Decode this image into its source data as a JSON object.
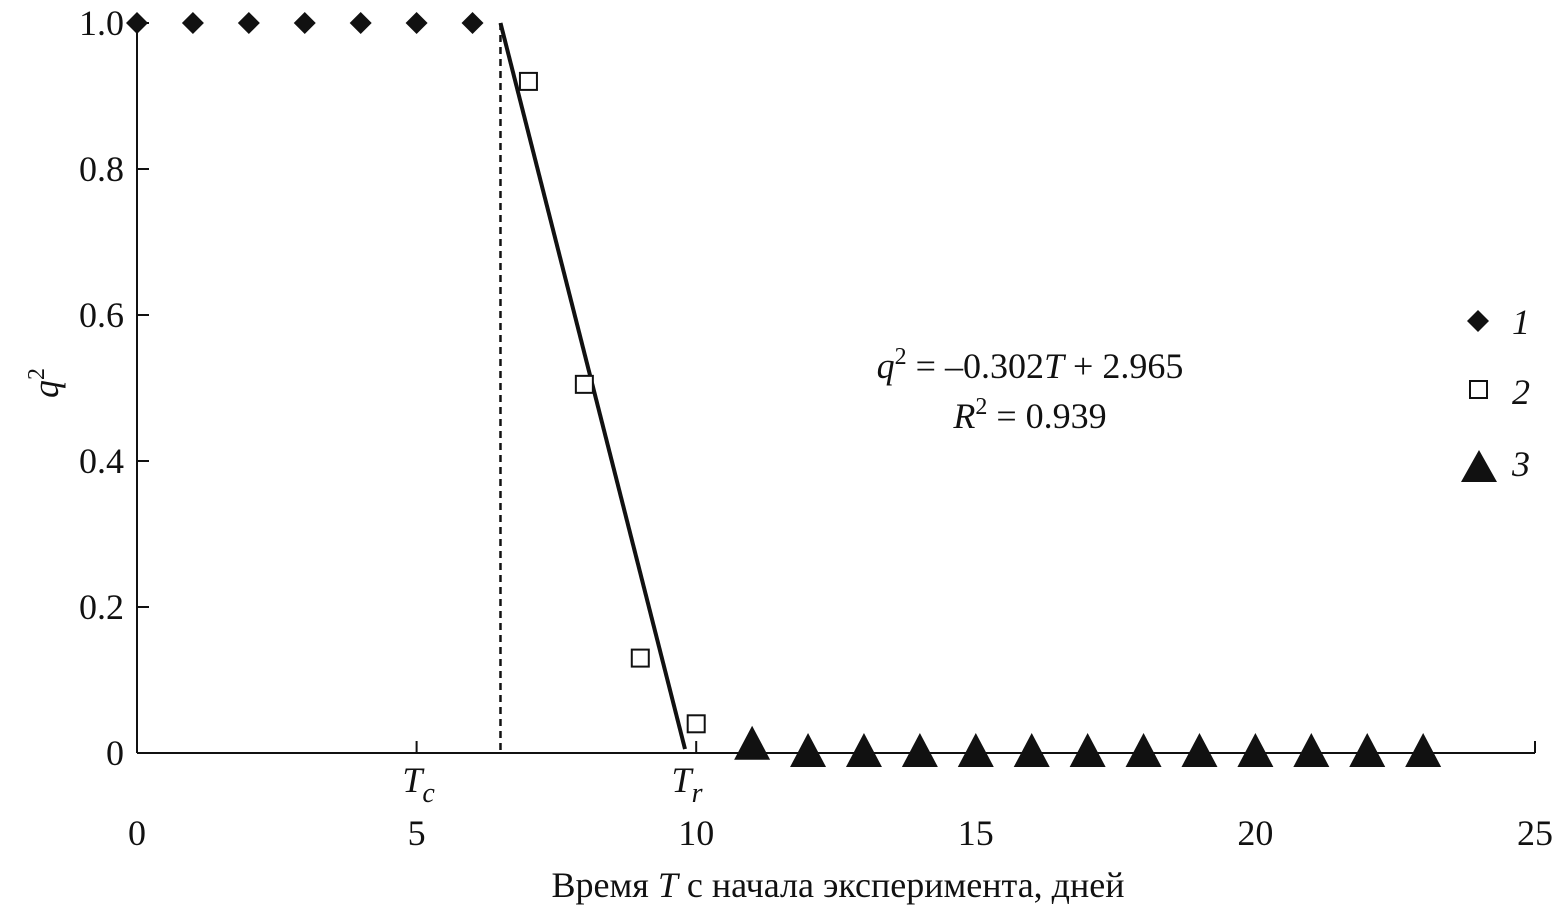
{
  "chart_data": {
    "type": "scatter",
    "ylabel": "q",
    "ylabel_superscript": "2",
    "xlabel_parts": [
      "Время ",
      "T",
      " с начала эксперимента, дней"
    ],
    "xlim": [
      0,
      25
    ],
    "ylim": [
      0,
      1.0
    ],
    "x_ticks": [
      {
        "value": 0,
        "label": "0"
      },
      {
        "value": 5,
        "label": "5"
      },
      {
        "value": 10,
        "label": "10"
      },
      {
        "value": 15,
        "label": "15"
      },
      {
        "value": 20,
        "label": "20"
      },
      {
        "value": 25,
        "label": "25"
      }
    ],
    "y_ticks": [
      {
        "value": 0,
        "label": "0"
      },
      {
        "value": 0.2,
        "label": "0.2"
      },
      {
        "value": 0.4,
        "label": "0.4"
      },
      {
        "value": 0.6,
        "label": "0.6"
      },
      {
        "value": 0.8,
        "label": "0.8"
      },
      {
        "value": 1.0,
        "label": "1.0"
      }
    ],
    "series": [
      {
        "name": "1",
        "marker": "diamond-filled",
        "x": [
          0,
          1,
          2,
          3,
          4,
          5,
          6
        ],
        "y": [
          1.0,
          1.0,
          1.0,
          1.0,
          1.0,
          1.0,
          1.0
        ]
      },
      {
        "name": "2",
        "marker": "square-open",
        "x": [
          7,
          8,
          9,
          10
        ],
        "y": [
          0.92,
          0.505,
          0.13,
          0.04
        ]
      },
      {
        "name": "3",
        "marker": "triangle-filled",
        "x": [
          11,
          12,
          13,
          14,
          15,
          16,
          17,
          18,
          19,
          20,
          21,
          22,
          23
        ],
        "y": [
          0.01,
          0,
          0,
          0,
          0,
          0,
          0,
          0,
          0,
          0,
          0,
          0,
          0
        ]
      }
    ],
    "fit_line": {
      "slope": -0.302,
      "intercept": 2.965,
      "x_range": [
        6.5,
        9.8
      ]
    },
    "vertical_dashed_line": {
      "x": 6.5
    },
    "marker_labels": [
      {
        "x": 5,
        "base": "T",
        "subscript": "c"
      },
      {
        "x": 9.8,
        "base": "T",
        "subscript": "r"
      }
    ],
    "equation": {
      "line1_parts": [
        "q",
        "2",
        " = –0.302",
        "T",
        " + 2.965"
      ],
      "line2_parts": [
        "R",
        "2",
        " = 0.939"
      ]
    },
    "legend_position": "right",
    "grid": false,
    "colors": {
      "ink": "#111111",
      "background": "#ffffff"
    }
  }
}
